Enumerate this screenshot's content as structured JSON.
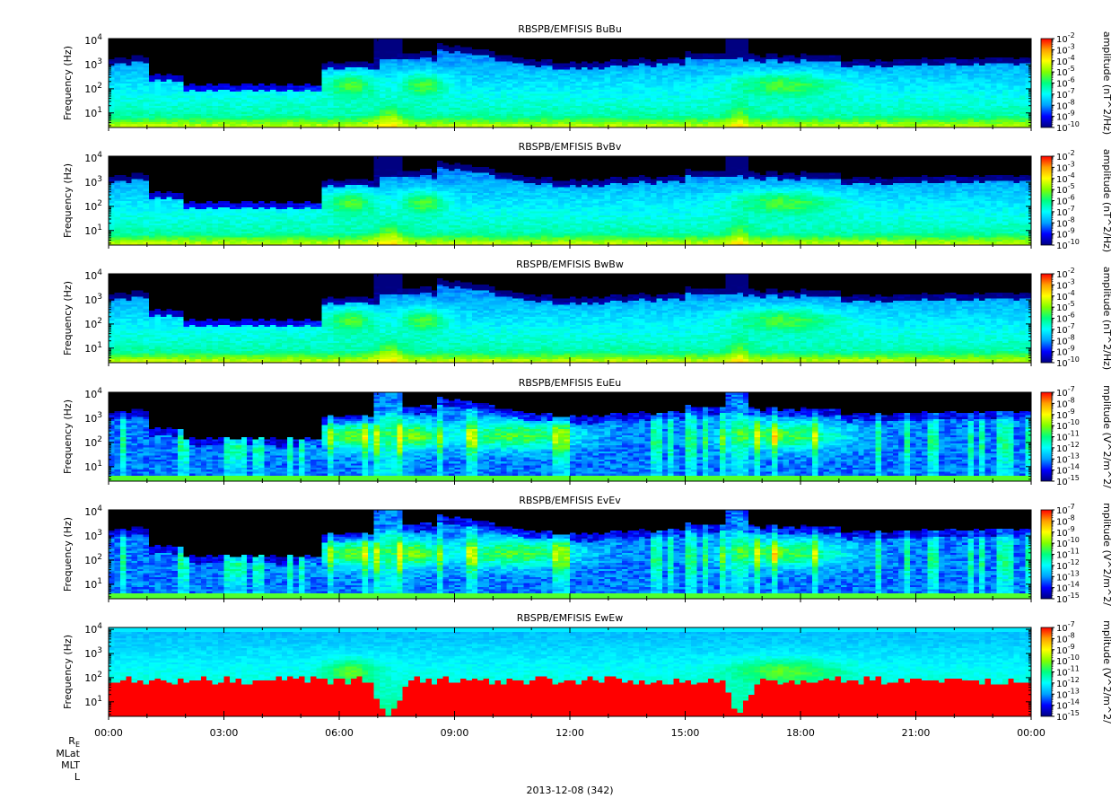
{
  "chart_data": {
    "type": "heatmap",
    "colormap": [
      "#000080",
      "#0000ff",
      "#00a0ff",
      "#00ffff",
      "#00ff80",
      "#80ff00",
      "#ffff00",
      "#ffa000",
      "#ff0000"
    ],
    "no_data_color": "#000000",
    "x_ticks": [
      "00:00",
      "03:00",
      "06:00",
      "09:00",
      "12:00",
      "15:00",
      "18:00",
      "21:00",
      "00:00"
    ],
    "x_range_hours": [
      0,
      24
    ],
    "y_scale": "log",
    "y_range_hz": [
      2.5,
      12000
    ],
    "ephemeris_labels": {
      "re_main": "R",
      "re_sub": "E",
      "mlat": "MLat",
      "mlt": "MLT",
      "l": "L"
    },
    "date_label": "2013-12-08 (342)",
    "panels": [
      {
        "title": "RBSPB/EMFISIS  BuBu",
        "ylabel": "Frequency (Hz)",
        "ytick_mantissa": "10",
        "yticks": [
          {
            "exp": "1",
            "value": 10
          },
          {
            "exp": "2",
            "value": 100
          },
          {
            "exp": "3",
            "value": 1000
          },
          {
            "exp": "4",
            "value": 10000
          }
        ],
        "colorbar_label": "amplitude (nT^2/Hz)",
        "colorbar_mantissa": "10",
        "colorbar_exps": [
          "-2",
          "-3",
          "-4",
          "-5",
          "-6",
          "-7",
          "-8",
          "-9",
          "-10"
        ],
        "colorbar_log_range": [
          -10,
          -2
        ],
        "profile": "B"
      },
      {
        "title": "RBSPB/EMFISIS  BvBv",
        "ylabel": "Frequency (Hz)",
        "ytick_mantissa": "10",
        "yticks": [
          {
            "exp": "1",
            "value": 10
          },
          {
            "exp": "2",
            "value": 100
          },
          {
            "exp": "3",
            "value": 1000
          },
          {
            "exp": "4",
            "value": 10000
          }
        ],
        "colorbar_label": "amplitude (nT^2/Hz)",
        "colorbar_mantissa": "10",
        "colorbar_exps": [
          "-2",
          "-3",
          "-4",
          "-5",
          "-6",
          "-7",
          "-8",
          "-9",
          "-10"
        ],
        "colorbar_log_range": [
          -10,
          -2
        ],
        "profile": "B"
      },
      {
        "title": "RBSPB/EMFISIS  BwBw",
        "ylabel": "Frequency (Hz)",
        "ytick_mantissa": "10",
        "yticks": [
          {
            "exp": "1",
            "value": 10
          },
          {
            "exp": "2",
            "value": 100
          },
          {
            "exp": "3",
            "value": 1000
          },
          {
            "exp": "4",
            "value": 10000
          }
        ],
        "colorbar_label": "amplitude (nT^2/Hz)",
        "colorbar_mantissa": "10",
        "colorbar_exps": [
          "-2",
          "-3",
          "-4",
          "-5",
          "-6",
          "-7",
          "-8",
          "-9",
          "-10"
        ],
        "colorbar_log_range": [
          -10,
          -2
        ],
        "profile": "B"
      },
      {
        "title": "RBSPB/EMFISIS  EuEu",
        "ylabel": "Frequency (Hz)",
        "ytick_mantissa": "10",
        "yticks": [
          {
            "exp": "1",
            "value": 10
          },
          {
            "exp": "2",
            "value": 100
          },
          {
            "exp": "3",
            "value": 1000
          },
          {
            "exp": "4",
            "value": 10000
          }
        ],
        "colorbar_label": "mplitude (V^2/m^2/",
        "colorbar_mantissa": "10",
        "colorbar_exps": [
          "-7",
          "-8",
          "-9",
          "-10",
          "-11",
          "-12",
          "-13",
          "-14",
          "-15"
        ],
        "colorbar_log_range": [
          -15,
          -7
        ],
        "profile": "E"
      },
      {
        "title": "RBSPB/EMFISIS  EvEv",
        "ylabel": "Frequency (Hz)",
        "ytick_mantissa": "10",
        "yticks": [
          {
            "exp": "1",
            "value": 10
          },
          {
            "exp": "2",
            "value": 100
          },
          {
            "exp": "3",
            "value": 1000
          },
          {
            "exp": "4",
            "value": 10000
          }
        ],
        "colorbar_label": "mplitude (V^2/m^2/",
        "colorbar_mantissa": "10",
        "colorbar_exps": [
          "-7",
          "-8",
          "-9",
          "-10",
          "-11",
          "-12",
          "-13",
          "-14",
          "-15"
        ],
        "colorbar_log_range": [
          -15,
          -7
        ],
        "profile": "E"
      },
      {
        "title": "RBSPB/EMFISIS  EwEw",
        "ylabel": "Frequency (Hz)",
        "ytick_mantissa": "10",
        "yticks": [
          {
            "exp": "1",
            "value": 10
          },
          {
            "exp": "2",
            "value": 100
          },
          {
            "exp": "3",
            "value": 1000
          },
          {
            "exp": "4",
            "value": 10000
          }
        ],
        "colorbar_label": "mplitude (V^2/m^2/",
        "colorbar_mantissa": "10",
        "colorbar_exps": [
          "-7",
          "-8",
          "-9",
          "-10",
          "-11",
          "-12",
          "-13",
          "-14",
          "-15"
        ],
        "colorbar_log_range": [
          -15,
          -7
        ],
        "profile": "Ew"
      }
    ]
  }
}
